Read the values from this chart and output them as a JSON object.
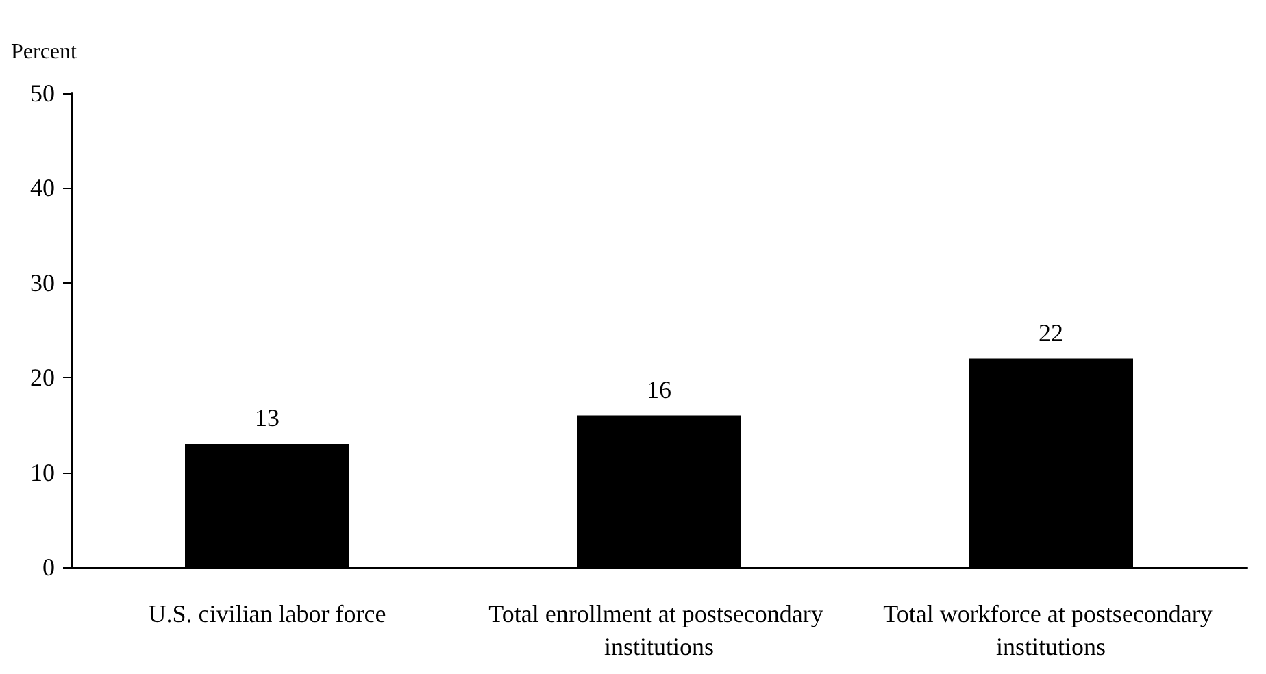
{
  "chart_data": {
    "type": "bar",
    "ylabel": "Percent",
    "categories": [
      "U.S. civilian labor force",
      "Total enrollment at postsecondary institutions",
      "Total workforce at postsecondary institutions"
    ],
    "values": [
      13,
      16,
      22
    ],
    "color": "#000000",
    "ylim": [
      0,
      50
    ],
    "yticks": [
      0,
      10,
      20,
      30,
      40,
      50
    ],
    "grid": false,
    "data_labels": true
  }
}
